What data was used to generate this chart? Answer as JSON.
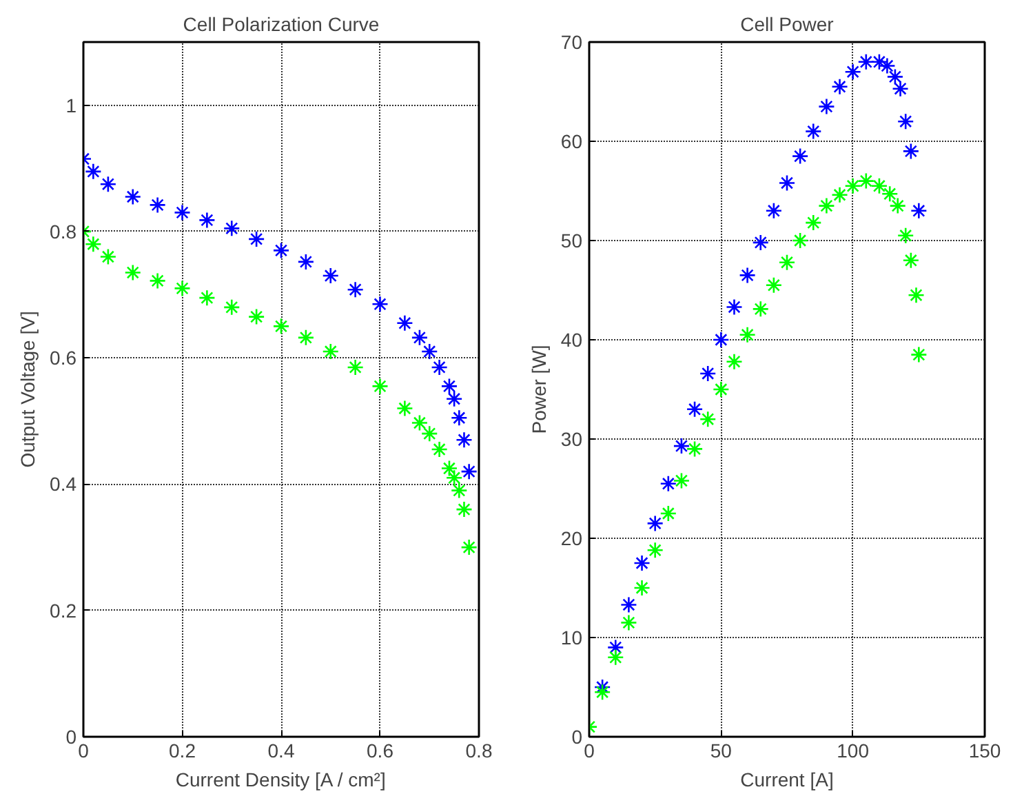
{
  "chart_data": [
    {
      "type": "scatter",
      "title": "Cell Polarization Curve",
      "xlabel": "Current Density [A / cm²]",
      "ylabel": "Output Voltage [V]",
      "xlim": [
        0,
        0.8
      ],
      "ylim": [
        0,
        1.1
      ],
      "xticks": [
        0,
        0.2,
        0.4,
        0.6,
        0.8
      ],
      "yticks": [
        0,
        0.2,
        0.4,
        0.6,
        0.8,
        1
      ],
      "grid": true,
      "marker": "cross",
      "series": [
        {
          "color": "#0000ff",
          "x": [
            0,
            0.02,
            0.05,
            0.1,
            0.15,
            0.2,
            0.25,
            0.3,
            0.35,
            0.4,
            0.45,
            0.5,
            0.55,
            0.6,
            0.65,
            0.68,
            0.7,
            0.72,
            0.74,
            0.75,
            0.76,
            0.77,
            0.78
          ],
          "values": [
            0.915,
            0.895,
            0.875,
            0.855,
            0.842,
            0.83,
            0.818,
            0.805,
            0.788,
            0.77,
            0.752,
            0.73,
            0.708,
            0.685,
            0.655,
            0.632,
            0.61,
            0.585,
            0.555,
            0.535,
            0.505,
            0.47,
            0.42
          ]
        },
        {
          "color": "#00ff00",
          "x": [
            0,
            0.02,
            0.05,
            0.1,
            0.15,
            0.2,
            0.25,
            0.3,
            0.35,
            0.4,
            0.45,
            0.5,
            0.55,
            0.6,
            0.65,
            0.68,
            0.7,
            0.72,
            0.74,
            0.75,
            0.76,
            0.77,
            0.78
          ],
          "values": [
            0.8,
            0.78,
            0.76,
            0.735,
            0.722,
            0.71,
            0.695,
            0.68,
            0.665,
            0.65,
            0.632,
            0.61,
            0.585,
            0.555,
            0.52,
            0.497,
            0.48,
            0.455,
            0.425,
            0.41,
            0.39,
            0.36,
            0.3
          ]
        }
      ]
    },
    {
      "type": "scatter",
      "title": "Cell Power",
      "xlabel": "Current [A]",
      "ylabel": "Power [W]",
      "xlim": [
        0,
        150
      ],
      "ylim": [
        0,
        70
      ],
      "xticks": [
        0,
        50,
        100,
        150
      ],
      "yticks": [
        0,
        10,
        20,
        30,
        40,
        50,
        60,
        70
      ],
      "grid": true,
      "marker": "cross",
      "series": [
        {
          "color": "#0000ff",
          "x": [
            5,
            10,
            15,
            20,
            25,
            30,
            35,
            40,
            45,
            50,
            55,
            60,
            65,
            70,
            75,
            80,
            85,
            90,
            95,
            100,
            105,
            110,
            113,
            116,
            118,
            120,
            122,
            125
          ],
          "values": [
            5,
            9,
            13.3,
            17.5,
            21.5,
            25.5,
            29.3,
            33,
            36.6,
            40,
            43.3,
            46.5,
            49.8,
            53,
            55.8,
            58.5,
            61,
            63.5,
            65.5,
            67,
            68,
            68,
            67.6,
            66.5,
            65.3,
            62,
            59,
            53
          ]
        },
        {
          "color": "#00ff00",
          "x": [
            0,
            5,
            10,
            15,
            20,
            25,
            30,
            35,
            40,
            45,
            50,
            55,
            60,
            65,
            70,
            75,
            80,
            85,
            90,
            95,
            100,
            105,
            110,
            114,
            117,
            120,
            122,
            124,
            125
          ],
          "values": [
            1,
            4.5,
            8,
            11.5,
            15,
            18.8,
            22.5,
            25.8,
            29,
            32,
            35,
            37.8,
            40.5,
            43.1,
            45.5,
            47.8,
            50,
            51.8,
            53.5,
            54.6,
            55.5,
            56,
            55.5,
            54.7,
            53.5,
            50.5,
            48,
            44.5,
            38.5
          ]
        }
      ]
    }
  ]
}
